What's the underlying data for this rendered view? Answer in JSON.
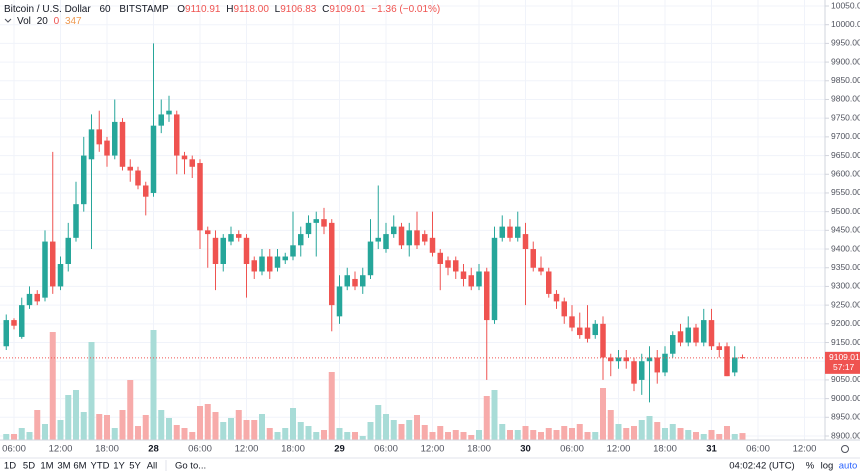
{
  "header": {
    "symbol": "Bitcoin / U.S. Dollar",
    "interval": "60",
    "exchange": "BITSTAMP",
    "o_label": "O",
    "o": "9110.91",
    "h_label": "H",
    "h": "9118.00",
    "l_label": "L",
    "l": "9106.83",
    "c_label": "C",
    "c": "9109.01",
    "change": "−1.36 (−0.01%)",
    "vol_name": "Vol",
    "vol_len": "20",
    "vol_ma": "0",
    "vol_last": "347"
  },
  "chart_data": {
    "type": "candlestick",
    "up_color": "#26a69a",
    "down_color": "#ef5350",
    "up_volume_color": "#a8dcd7",
    "down_volume_color": "#f7abaa",
    "grid": true,
    "categories": [
      null,
      "06:00",
      null,
      null,
      null,
      null,
      null,
      "12:00",
      null,
      null,
      null,
      null,
      null,
      "18:00",
      null,
      null,
      null,
      null,
      null,
      "28",
      null,
      null,
      null,
      null,
      null,
      "06:00",
      null,
      null,
      null,
      null,
      null,
      "12:00",
      null,
      null,
      null,
      null,
      null,
      "18:00",
      null,
      null,
      null,
      null,
      null,
      "29",
      null,
      null,
      null,
      null,
      null,
      "06:00",
      null,
      null,
      null,
      null,
      null,
      "12:00",
      null,
      null,
      null,
      null,
      null,
      "18:00",
      null,
      null,
      null,
      null,
      null,
      "30",
      null,
      null,
      null,
      null,
      null,
      "06:00",
      null,
      null,
      null,
      null,
      null,
      "12:00",
      null,
      null,
      null,
      null,
      null,
      "18:00",
      null,
      null,
      null,
      null,
      null,
      "31",
      null,
      null,
      null,
      null,
      null,
      "06:00",
      null,
      null,
      null,
      null,
      null,
      "12:00"
    ],
    "open": [
      9140,
      9210,
      9165,
      9250,
      9280,
      9270,
      9420,
      9300,
      9360,
      9430,
      9520,
      9640,
      9720,
      9690,
      9650,
      9740,
      9620,
      9610,
      9570,
      9550,
      9730,
      9760,
      9760,
      9650,
      9640,
      9630,
      9450,
      9430,
      9360,
      9420,
      9440,
      9430,
      9370,
      9340,
      9380,
      9350,
      9370,
      9380,
      9410,
      9440,
      9470,
      9480,
      9470,
      9220,
      9300,
      9320,
      9300,
      9330,
      9420,
      9400,
      9440,
      9460,
      9410,
      9450,
      9440,
      9430,
      9390,
      9370,
      9370,
      9340,
      9330,
      9300,
      9340,
      9210,
      9430,
      9460,
      9430,
      9440,
      9400,
      9350,
      9340,
      9280,
      9260,
      9220,
      9190,
      9190,
      9170,
      9200,
      9110,
      9100,
      9110,
      9100,
      9050,
      9100,
      9110,
      9070,
      9120,
      9180,
      9150,
      9190,
      9150,
      9210,
      9140,
      9140,
      9070,
      9110.91,
      null,
      null,
      null,
      null,
      null,
      null,
      null,
      null
    ],
    "high": [
      9225,
      9215,
      9270,
      9300,
      9290,
      9450,
      9660,
      9380,
      9470,
      9580,
      9700,
      9760,
      9770,
      9700,
      9800,
      9750,
      9640,
      9620,
      9580,
      9950,
      9800,
      9810,
      9770,
      9660,
      9650,
      9640,
      9460,
      9450,
      9440,
      9460,
      9450,
      9440,
      9380,
      9400,
      9400,
      9400,
      9390,
      9500,
      9460,
      9490,
      9500,
      9510,
      9480,
      9330,
      9350,
      9340,
      9350,
      9480,
      9570,
      9470,
      9490,
      9470,
      9470,
      9500,
      9450,
      9500,
      9400,
      9380,
      9380,
      9360,
      9350,
      9360,
      9350,
      9460,
      9490,
      9480,
      9500,
      9470,
      9420,
      9380,
      9350,
      9290,
      9270,
      9250,
      9230,
      9250,
      9210,
      9220,
      9120,
      9130,
      9130,
      9110,
      9120,
      9140,
      9130,
      9140,
      9180,
      9200,
      9220,
      9200,
      9240,
      9240,
      9150,
      9150,
      9140,
      9118,
      null,
      null,
      null,
      null,
      null,
      null,
      null,
      null
    ],
    "low": [
      9130,
      9185,
      9160,
      9240,
      9250,
      9260,
      9280,
      9290,
      9340,
      9420,
      9500,
      9400,
      9660,
      9620,
      9640,
      9610,
      9580,
      9560,
      9490,
      9540,
      9710,
      9740,
      9600,
      9600,
      9590,
      9400,
      9350,
      9290,
      9340,
      9410,
      9420,
      9270,
      9320,
      9330,
      9320,
      9340,
      9360,
      9370,
      9380,
      9430,
      9380,
      9440,
      9180,
      9200,
      9290,
      9290,
      9280,
      9320,
      9400,
      9390,
      9430,
      9400,
      9380,
      9400,
      9410,
      9380,
      9290,
      9330,
      9320,
      9300,
      9290,
      9290,
      9050,
      9200,
      9420,
      9420,
      9420,
      9250,
      9340,
      9330,
      9270,
      9240,
      9200,
      9180,
      9160,
      9150,
      9160,
      9050,
      9060,
      9080,
      9080,
      9020,
      9010,
      8990,
      9040,
      9060,
      9110,
      9140,
      9140,
      9140,
      9140,
      9130,
      9110,
      9060,
      9060,
      9106.83,
      null,
      null,
      null,
      null,
      null,
      null,
      null,
      null
    ],
    "close": [
      9210,
      9195,
      9250,
      9280,
      9260,
      9420,
      9300,
      9360,
      9430,
      9520,
      9650,
      9720,
      9680,
      9650,
      9740,
      9620,
      9610,
      9570,
      9540,
      9730,
      9760,
      9770,
      9650,
      9640,
      9620,
      9450,
      9440,
      9360,
      9430,
      9440,
      9430,
      9360,
      9340,
      9380,
      9340,
      9380,
      9380,
      9410,
      9440,
      9470,
      9480,
      9460,
      9250,
      9300,
      9330,
      9300,
      9330,
      9420,
      9430,
      9440,
      9460,
      9410,
      9450,
      9410,
      9420,
      9390,
      9360,
      9350,
      9340,
      9320,
      9300,
      9340,
      9210,
      9430,
      9460,
      9430,
      9460,
      9400,
      9350,
      9340,
      9280,
      9260,
      9220,
      9190,
      9170,
      9160,
      9200,
      9110,
      9100,
      9110,
      9100,
      9040,
      9100,
      9110,
      9070,
      9120,
      9170,
      9150,
      9190,
      9150,
      9210,
      9140,
      9130,
      9060,
      9110,
      9109.01,
      null,
      null,
      null,
      null,
      null,
      null,
      null,
      null
    ],
    "volume": [
      300,
      300,
      600,
      400,
      1500,
      800,
      5400,
      1000,
      2250,
      2500,
      1400,
      4900,
      1300,
      1250,
      600,
      1500,
      3000,
      700,
      1250,
      5500,
      1500,
      1100,
      750,
      600,
      400,
      1700,
      1800,
      1400,
      900,
      1100,
      1500,
      1000,
      1000,
      1300,
      600,
      400,
      600,
      1600,
      900,
      700,
      400,
      500,
      3400,
      600,
      400,
      400,
      200,
      900,
      1750,
      1300,
      1000,
      800,
      1000,
      1250,
      750,
      400,
      700,
      400,
      500,
      400,
      250,
      500,
      2200,
      2500,
      800,
      500,
      500,
      700,
      500,
      400,
      600,
      500,
      700,
      600,
      800,
      400,
      400,
      2600,
      1500,
      800,
      600,
      700,
      1000,
      1200,
      900,
      600,
      800,
      600,
      500,
      400,
      300,
      500,
      300,
      700,
      300,
      347,
      null,
      null,
      null,
      null,
      null,
      null,
      null,
      null
    ],
    "ylim": [
      8900,
      10050
    ],
    "yticks": [
      {
        "value": 8900,
        "label": "8900.00"
      },
      {
        "value": 8950,
        "label": "8950.00"
      },
      {
        "value": 9000,
        "label": "9000.00"
      },
      {
        "value": 9050,
        "label": "9050.00"
      },
      {
        "value": 9100,
        "label": "9100.00"
      },
      {
        "value": 9150,
        "label": "9150.00"
      },
      {
        "value": 9200,
        "label": "9200.00"
      },
      {
        "value": 9250,
        "label": "9250.00"
      },
      {
        "value": 9300,
        "label": "9300.00"
      },
      {
        "value": 9350,
        "label": "9350.00"
      },
      {
        "value": 9400,
        "label": "9400.00"
      },
      {
        "value": 9450,
        "label": "9450.00"
      },
      {
        "value": 9500,
        "label": "9500.00"
      },
      {
        "value": 9550,
        "label": "9550.00"
      },
      {
        "value": 9600,
        "label": "9600.00"
      },
      {
        "value": 9650,
        "label": "9650.00"
      },
      {
        "value": 9700,
        "label": "9700.00"
      },
      {
        "value": 9750,
        "label": "9750.00"
      },
      {
        "value": 9800,
        "label": "9800.00"
      },
      {
        "value": 9850,
        "label": "9850.00"
      },
      {
        "value": 9900,
        "label": "9900.00"
      },
      {
        "value": 9950,
        "label": "9950.00"
      },
      {
        "value": 10000,
        "label": "10000.00"
      },
      {
        "value": 10050,
        "label": "10050.00"
      }
    ],
    "countdown": "57:17"
  },
  "toolbar": {
    "ranges": [
      "1D",
      "5D",
      "1M",
      "3M",
      "6M",
      "YTD",
      "1Y",
      "5Y",
      "All"
    ],
    "goto": "Go to...",
    "clock": "04:02:42 (UTC)",
    "percent": "%",
    "log": "log",
    "auto": "auto"
  }
}
